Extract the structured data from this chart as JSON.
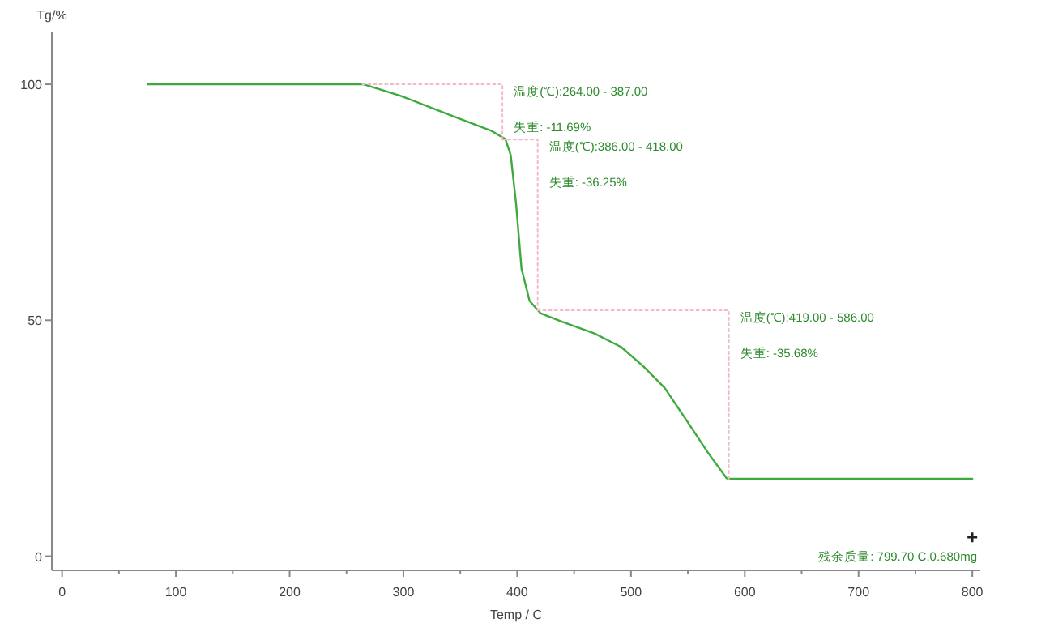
{
  "chart_data": {
    "type": "line",
    "xlabel": "Temp / C",
    "ylabel": "Tg/%",
    "xlim": [
      -9,
      807
    ],
    "ylim": [
      -3,
      111
    ],
    "xticks": [
      0,
      {
        "value": 50,
        "label": null
      },
      100,
      {
        "value": 150,
        "label": null
      },
      200,
      {
        "value": 250,
        "label": null
      },
      300,
      {
        "value": 350,
        "label": null
      },
      400,
      {
        "value": 450,
        "label": null
      },
      500,
      {
        "value": 550,
        "label": null
      },
      600,
      {
        "value": 650,
        "label": null
      },
      700,
      {
        "value": 750,
        "label": null
      },
      800
    ],
    "yticks": [
      0,
      50,
      100
    ],
    "grid": false,
    "marker": "none",
    "series": [
      {
        "color": "#3daa3d",
        "line_style": "solid",
        "x": [
          75,
          264,
          266.2,
          297.1,
          339.8,
          377.6,
          389.6,
          394.3,
          399.0,
          403.8,
          410.9,
          420.4,
          439.4,
          467.9,
          491.5,
          510.6,
          529.5,
          548.5,
          567.5,
          584.1,
          586,
          800
        ],
        "values": [
          100,
          100,
          99.9,
          97.6,
          93.6,
          90.1,
          88.4,
          85.0,
          74.7,
          60.9,
          54.1,
          51.5,
          49.7,
          47.2,
          44.3,
          40.3,
          35.7,
          28.9,
          22.0,
          16.5,
          16.4,
          16.4
        ]
      },
      {
        "color": "#f2b8cc",
        "line_style": "dotted",
        "x": [
          264,
          387,
          387
        ],
        "values": [
          100,
          100,
          88.3
        ]
      },
      {
        "color": "#f2b8cc",
        "line_style": "dotted",
        "x": [
          387,
          418,
          418
        ],
        "values": [
          88.3,
          88.3,
          52.1
        ]
      },
      {
        "color": "#f2b8cc",
        "line_style": "dotted",
        "x": [
          418,
          586,
          586
        ],
        "values": [
          52.1,
          52.1,
          16.4
        ]
      },
      {
        "type": "scatter",
        "marker": "cross",
        "color": "#222222",
        "x": [
          800
        ],
        "values": [
          4
        ]
      }
    ],
    "annotations": [
      {
        "text": "温度(℃):264.00 - 387.00",
        "x": 387,
        "y": 100
      },
      "失重:  -11.69%",
      {
        "text": "温度(℃):386.00 - 418.00",
        "x": 418,
        "y": 88.3
      },
      "失重:  -36.25%",
      {
        "text": "温度(℃):419.00 - 586.00",
        "x": 586,
        "y": 52.1
      },
      "失重:  -35.68%",
      "残余质量:  799.70 C,0.680mg"
    ]
  }
}
